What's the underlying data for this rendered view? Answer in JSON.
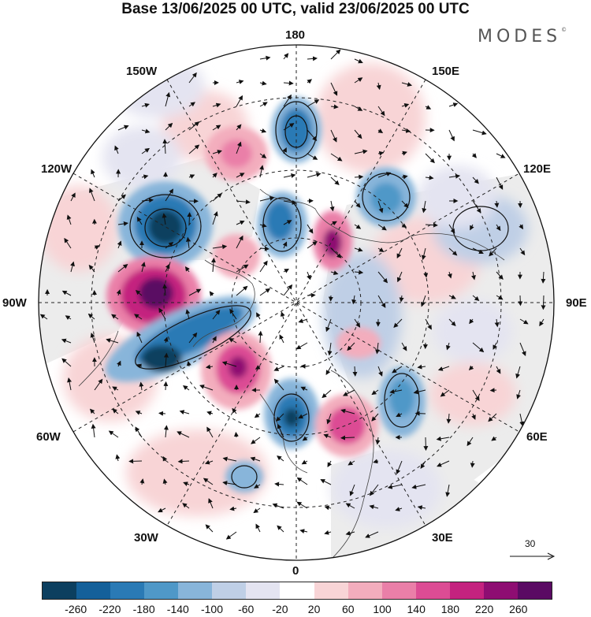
{
  "title": "Base 13/06/2025 00 UTC, valid 23/06/2025 00 UTC",
  "brand": "MODES",
  "brand_mark": "©",
  "longitude_labels": {
    "n180": "180",
    "w150": "150W",
    "e150": "150E",
    "w120": "120W",
    "e120": "120E",
    "w90": "90W",
    "e90": "90E",
    "w60": "60W",
    "e60": "60E",
    "w30": "30W",
    "e30": "30E",
    "s0": "0"
  },
  "reference_vector_label": "30",
  "colorbar": {
    "ticks": [
      "-260",
      "-220",
      "-180",
      "-140",
      "-100",
      "-60",
      "-20",
      "20",
      "60",
      "100",
      "140",
      "180",
      "220",
      "260"
    ],
    "colors": [
      "#0c3f5f",
      "#14609a",
      "#2a7ab5",
      "#4f98c8",
      "#88b5da",
      "#bfcfe6",
      "#e4e4f1",
      "#ffffff",
      "#f8d4d6",
      "#f3adbd",
      "#ea7fa8",
      "#dc4c94",
      "#c4227f",
      "#8e0d72",
      "#5a0a63"
    ]
  },
  "map": {
    "projection": "north-polar-stereographic",
    "graticule": "dashed",
    "anomalies": [
      {
        "sign": "-",
        "level": 220,
        "region": "North Pacific near 180"
      },
      {
        "sign": "-",
        "level": 260,
        "region": "Alaska / Gulf of Alaska"
      },
      {
        "sign": "+",
        "level": 260,
        "region": "Central Canada / Hudson Bay"
      },
      {
        "sign": "-",
        "level": 220,
        "region": "Labrador Sea / Greenland"
      },
      {
        "sign": "+",
        "level": 220,
        "region": "North Atlantic west of Iceland"
      },
      {
        "sign": "-",
        "level": 220,
        "region": "Northern Europe"
      },
      {
        "sign": "+",
        "level": 200,
        "region": "Barents / Kara Sea"
      },
      {
        "sign": "+",
        "level": 200,
        "region": "East Siberian Sea"
      },
      {
        "sign": "-",
        "level": 180,
        "region": "Eastern Siberia"
      },
      {
        "sign": "-",
        "level": 180,
        "region": "Beaufort Sea"
      }
    ]
  }
}
